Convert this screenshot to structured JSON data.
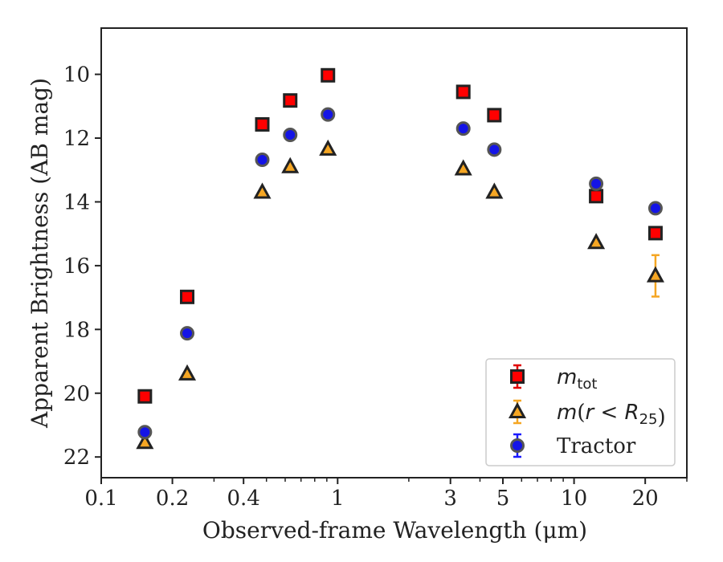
{
  "chart_data": {
    "type": "scatter",
    "xlabel": "Observed-frame Wavelength (μm)",
    "ylabel": "Apparent Brightness (AB mag)",
    "xscale": "log",
    "xlim": [
      0.1,
      30
    ],
    "ylim": [
      22.65,
      8.55
    ],
    "y_inverted": true,
    "xticks": [
      {
        "value": 0.1,
        "label": "0.1"
      },
      {
        "value": 0.2,
        "label": "0.2"
      },
      {
        "value": 0.4,
        "label": "0.4"
      },
      {
        "value": 1,
        "label": "1"
      },
      {
        "value": 3,
        "label": "3"
      },
      {
        "value": 5,
        "label": "5"
      },
      {
        "value": 10,
        "label": "10"
      },
      {
        "value": 20,
        "label": "20"
      }
    ],
    "xminor": [
      0.3,
      0.5,
      0.6,
      0.7,
      0.8,
      0.9,
      2,
      4,
      6,
      7,
      8,
      9,
      30
    ],
    "yticks": [
      {
        "value": 10,
        "label": "10"
      },
      {
        "value": 12,
        "label": "12"
      },
      {
        "value": 14,
        "label": "14"
      },
      {
        "value": 16,
        "label": "16"
      },
      {
        "value": 18,
        "label": "18"
      },
      {
        "value": 20,
        "label": "20"
      },
      {
        "value": 22,
        "label": "22"
      }
    ],
    "legend_position": "lower-right",
    "series": [
      {
        "name": "m_tot",
        "legend_parts": [
          {
            "text": "m",
            "italic": true
          },
          {
            "text": "tot",
            "sub": true
          }
        ],
        "marker": "square",
        "fill": "#ff0000",
        "edge": "#222222",
        "errcolor": "#e00000",
        "points": [
          {
            "x": 0.153,
            "y": 20.1
          },
          {
            "x": 0.231,
            "y": 16.98
          },
          {
            "x": 0.48,
            "y": 11.57
          },
          {
            "x": 0.63,
            "y": 10.82
          },
          {
            "x": 0.91,
            "y": 10.03
          },
          {
            "x": 3.4,
            "y": 10.55
          },
          {
            "x": 4.6,
            "y": 11.28
          },
          {
            "x": 12.4,
            "y": 13.82
          },
          {
            "x": 22.1,
            "y": 14.98
          }
        ]
      },
      {
        "name": "m(r < R25)",
        "legend_parts": [
          {
            "text": "m",
            "italic": true
          },
          {
            "text": "(",
            "italic": false
          },
          {
            "text": "r",
            "italic": true
          },
          {
            "text": " < ",
            "italic": false
          },
          {
            "text": "R",
            "italic": true
          },
          {
            "text": "25",
            "sub": true
          },
          {
            "text": ")",
            "italic": false
          }
        ],
        "marker": "triangle",
        "fill": "#f5a623",
        "edge": "#222222",
        "errcolor": "#f5a623",
        "points": [
          {
            "x": 0.153,
            "y": 21.55
          },
          {
            "x": 0.231,
            "y": 19.4
          },
          {
            "x": 0.48,
            "y": 13.7
          },
          {
            "x": 0.63,
            "y": 12.9
          },
          {
            "x": 0.91,
            "y": 12.35
          },
          {
            "x": 3.4,
            "y": 12.97
          },
          {
            "x": 4.6,
            "y": 13.7
          },
          {
            "x": 12.4,
            "y": 15.28
          },
          {
            "x": 22.1,
            "y": 16.32,
            "yerr": 0.65
          }
        ]
      },
      {
        "name": "Tractor",
        "legend_parts": [
          {
            "text": "Tractor",
            "italic": false
          }
        ],
        "marker": "circle",
        "fill": "#1414e6",
        "edge": "#555555",
        "errcolor": "#1a1aff",
        "points": [
          {
            "x": 0.153,
            "y": 21.22
          },
          {
            "x": 0.231,
            "y": 18.12
          },
          {
            "x": 0.48,
            "y": 12.68
          },
          {
            "x": 0.63,
            "y": 11.9
          },
          {
            "x": 0.91,
            "y": 11.26
          },
          {
            "x": 3.4,
            "y": 11.7
          },
          {
            "x": 4.6,
            "y": 12.36
          },
          {
            "x": 12.4,
            "y": 13.43
          },
          {
            "x": 22.1,
            "y": 14.2
          }
        ]
      }
    ]
  }
}
